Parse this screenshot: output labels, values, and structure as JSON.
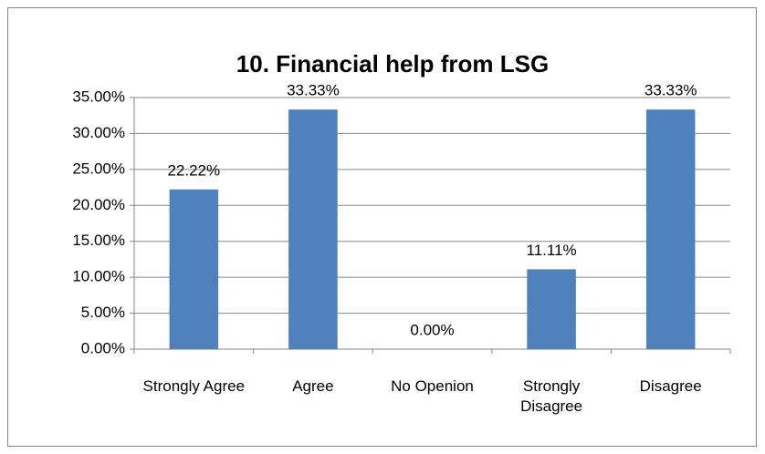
{
  "chart_data": {
    "type": "bar",
    "title": "10. Financial help from LSG",
    "categories": [
      "Strongly Agree",
      "Agree",
      "No Openion",
      "Strongly Disagree",
      "Disagree"
    ],
    "values": [
      22.22,
      33.33,
      0,
      11.11,
      33.33
    ],
    "value_labels": [
      "22.22%",
      "33.33%",
      "0.00%",
      "11.11%",
      "33.33%"
    ],
    "color": "#4f81bd",
    "ylim": [
      0,
      35
    ],
    "yticks": [
      {
        "value": 0,
        "label": "0.00%"
      },
      {
        "value": 5,
        "label": "5.00%"
      },
      {
        "value": 10,
        "label": "10.00%"
      },
      {
        "value": 15,
        "label": "15.00%"
      },
      {
        "value": 20,
        "label": "20.00%"
      },
      {
        "value": 25,
        "label": "25.00%"
      },
      {
        "value": 30,
        "label": "30.00%"
      },
      {
        "value": 35,
        "label": "35.00%"
      }
    ],
    "grid": true
  }
}
